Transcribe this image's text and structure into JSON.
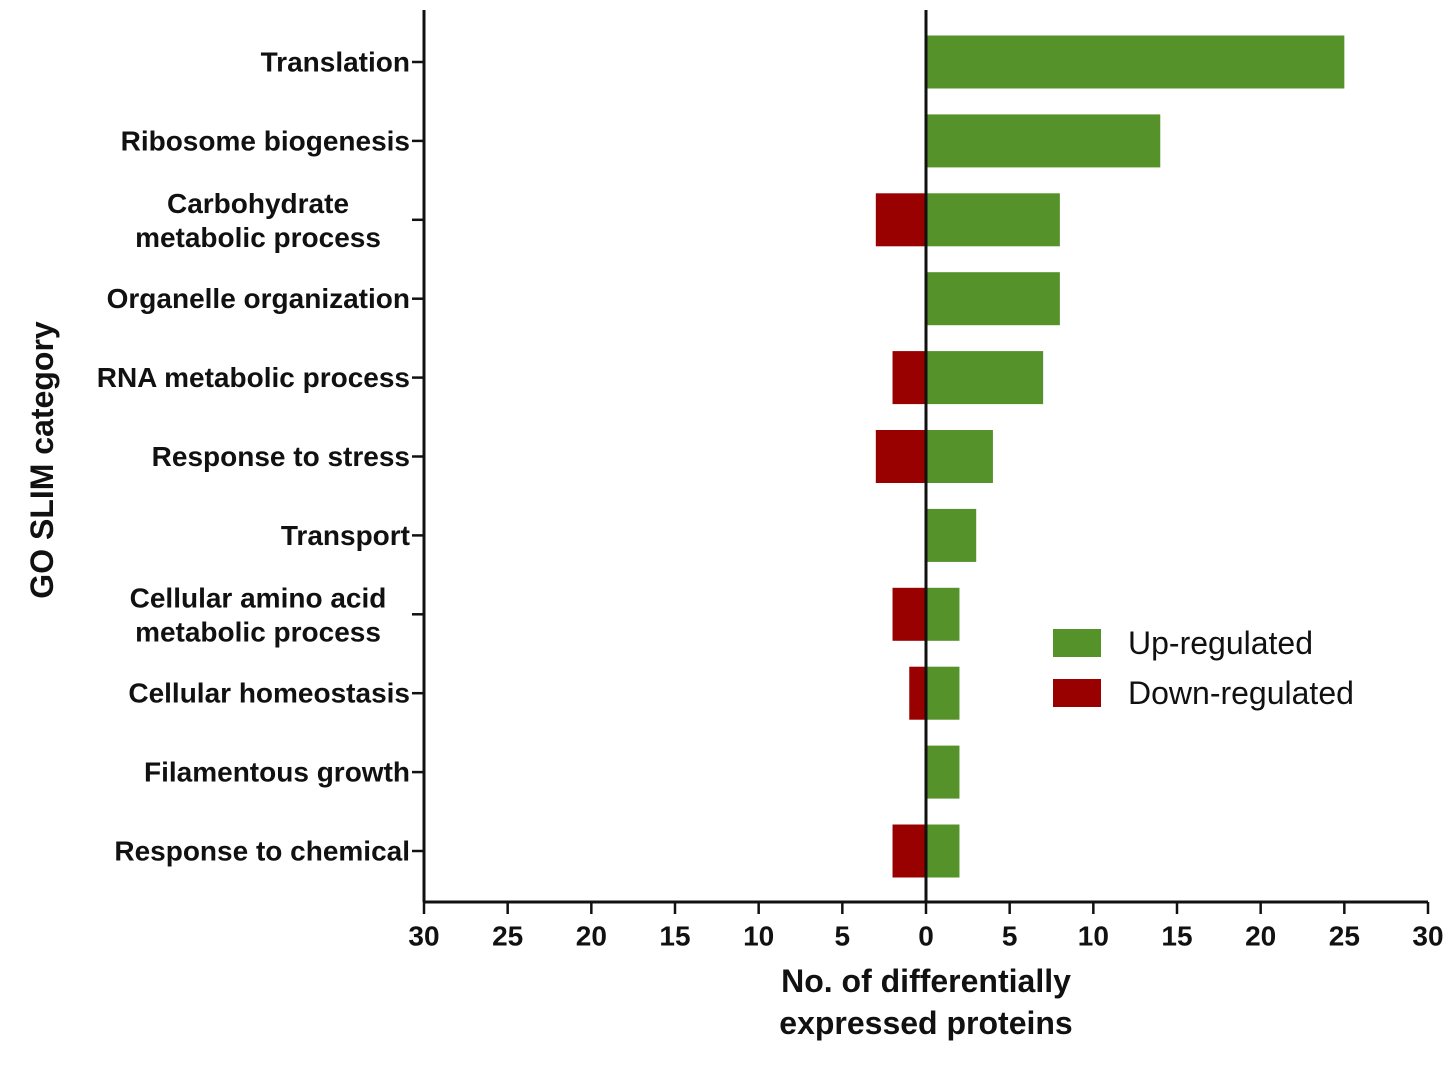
{
  "chart_data": {
    "type": "bar",
    "orientation": "horizontal-diverging",
    "categories": [
      [
        "Translation"
      ],
      [
        "Ribosome biogenesis"
      ],
      [
        "Carbohydrate",
        "metabolic process"
      ],
      [
        "Organelle organization"
      ],
      [
        "RNA metabolic process"
      ],
      [
        "Response to stress"
      ],
      [
        "Transport"
      ],
      [
        "Cellular amino acid",
        "metabolic process"
      ],
      [
        "Cellular homeostasis"
      ],
      [
        "Filamentous growth"
      ],
      [
        "Response to chemical"
      ]
    ],
    "series": [
      {
        "name": "Up-regulated",
        "color": "#55922a",
        "values": [
          25,
          14,
          8,
          8,
          7,
          4,
          3,
          2,
          2,
          2,
          2
        ]
      },
      {
        "name": "Down-regulated",
        "color": "#990000",
        "values": [
          0,
          0,
          3,
          0,
          2,
          3,
          0,
          2,
          1,
          0,
          2
        ]
      }
    ],
    "xlim": [
      -30,
      30
    ],
    "xticks": [
      30,
      25,
      20,
      15,
      10,
      5,
      0,
      5,
      10,
      15,
      20,
      25,
      30
    ],
    "xlabel": [
      "No. of differentially",
      "expressed proteins"
    ],
    "ylabel": "GO SLIM category",
    "legend_position": "right-middle"
  }
}
